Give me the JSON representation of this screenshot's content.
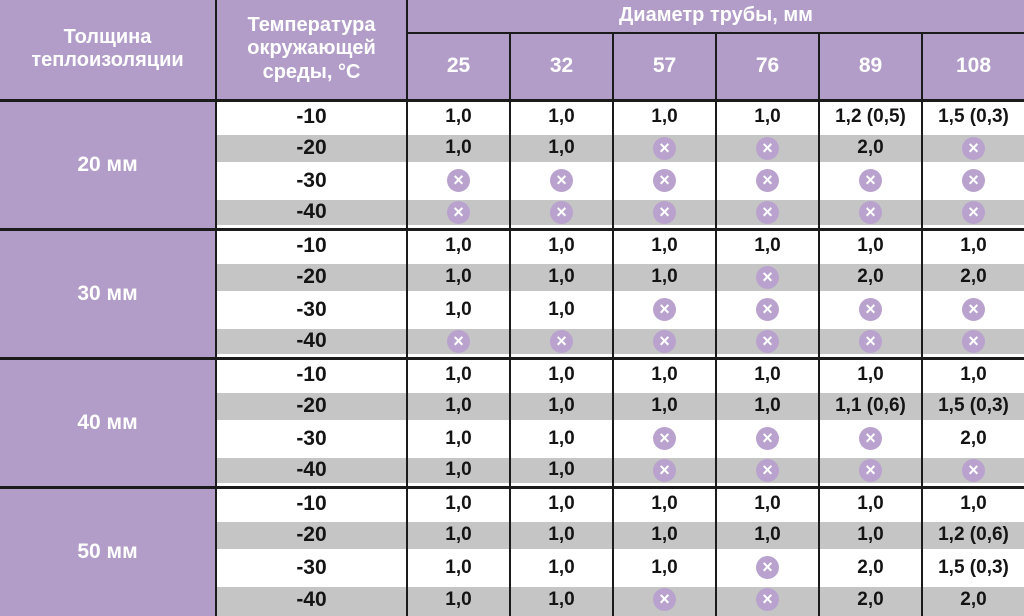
{
  "table": {
    "header": {
      "thickness_label": "Толщина теплоизоляции",
      "temperature_label": "Температура окружающей среды, °С",
      "diameter_group_label": "Диаметр трубы, мм",
      "diameters": [
        "25",
        "32",
        "57",
        "76",
        "89",
        "108"
      ]
    },
    "groups": [
      {
        "thickness": "20 мм",
        "rows": [
          {
            "temp": "-10",
            "values": [
              "1,0",
              "1,0",
              "1,0",
              "1,0",
              "1,2 (0,5)",
              "1,5 (0,3)"
            ]
          },
          {
            "temp": "-20",
            "values": [
              "1,0",
              "1,0",
              "X",
              "X",
              "2,0",
              "X"
            ]
          },
          {
            "temp": "-30",
            "values": [
              "X",
              "X",
              "X",
              "X",
              "X",
              "X"
            ]
          },
          {
            "temp": "-40",
            "values": [
              "X",
              "X",
              "X",
              "X",
              "X",
              "X"
            ]
          }
        ]
      },
      {
        "thickness": "30 мм",
        "rows": [
          {
            "temp": "-10",
            "values": [
              "1,0",
              "1,0",
              "1,0",
              "1,0",
              "1,0",
              "1,0"
            ]
          },
          {
            "temp": "-20",
            "values": [
              "1,0",
              "1,0",
              "1,0",
              "X",
              "2,0",
              "2,0"
            ]
          },
          {
            "temp": "-30",
            "values": [
              "1,0",
              "1,0",
              "X",
              "X",
              "X",
              "X"
            ]
          },
          {
            "temp": "-40",
            "values": [
              "X",
              "X",
              "X",
              "X",
              "X",
              "X"
            ]
          }
        ]
      },
      {
        "thickness": "40 мм",
        "rows": [
          {
            "temp": "-10",
            "values": [
              "1,0",
              "1,0",
              "1,0",
              "1,0",
              "1,0",
              "1,0"
            ]
          },
          {
            "temp": "-20",
            "values": [
              "1,0",
              "1,0",
              "1,0",
              "1,0",
              "1,1 (0,6)",
              "1,5 (0,3)"
            ]
          },
          {
            "temp": "-30",
            "values": [
              "1,0",
              "1,0",
              "X",
              "X",
              "X",
              "2,0"
            ]
          },
          {
            "temp": "-40",
            "values": [
              "1,0",
              "1,0",
              "X",
              "X",
              "X",
              "X"
            ]
          }
        ]
      },
      {
        "thickness": "50 мм",
        "rows": [
          {
            "temp": "-10",
            "values": [
              "1,0",
              "1,0",
              "1,0",
              "1,0",
              "1,0",
              "1,0"
            ]
          },
          {
            "temp": "-20",
            "values": [
              "1,0",
              "1,0",
              "1,0",
              "1,0",
              "1,0",
              "1,2 (0,6)"
            ]
          },
          {
            "temp": "-30",
            "values": [
              "1,0",
              "1,0",
              "1,0",
              "X",
              "2,0",
              "1,5 (0,3)"
            ]
          },
          {
            "temp": "-40",
            "values": [
              "1,0",
              "1,0",
              "X",
              "X",
              "2,0",
              "2,0"
            ]
          }
        ]
      }
    ],
    "icons": {
      "not_allowed_name": "crossed-circle-icon",
      "not_allowed_glyph": "×"
    },
    "colors": {
      "purple": "#b29dc8",
      "icon_purple": "#b9a2cd",
      "row_gray": "#c5c5c5",
      "border": "#1b1b1b",
      "header_text": "#ffffff",
      "cell_text": "#141414"
    }
  }
}
